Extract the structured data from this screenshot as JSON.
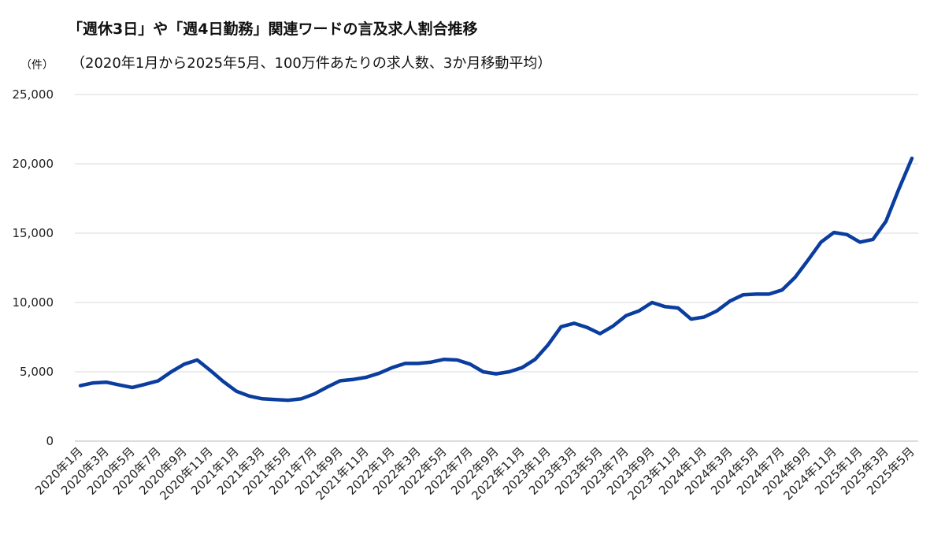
{
  "chart_data": {
    "type": "line",
    "title": "「週休3日」や「週4日勤務」関連ワードの言及求人割合推移",
    "subtitle": "（2020年1月から2025年5月、100万件あたりの求人数、3か月移動平均）",
    "ylabel": "（件）",
    "xlabel": "",
    "ylim": [
      0,
      25000
    ],
    "yticks": [
      0,
      5000,
      10000,
      15000,
      20000,
      25000
    ],
    "ytick_labels": [
      "0",
      "5,000",
      "10,000",
      "15,000",
      "20,000",
      "25,000"
    ],
    "grid": true,
    "line_color": "#0a3d9e",
    "x_tick_labels": [
      "2020年1月",
      "2020年3月",
      "2020年5月",
      "2020年7月",
      "2020年9月",
      "2020年11月",
      "2021年1月",
      "2021年3月",
      "2021年5月",
      "2021年7月",
      "2021年9月",
      "2021年11月",
      "2022年1月",
      "2022年3月",
      "2022年5月",
      "2022年7月",
      "2022年9月",
      "2022年11月",
      "2023年1月",
      "2023年3月",
      "2023年5月",
      "2023年7月",
      "2023年9月",
      "2023年11月",
      "2024年1月",
      "2024年3月",
      "2024年5月",
      "2024年7月",
      "2024年9月",
      "2024年11月",
      "2025年1月",
      "2025年3月",
      "2025年5月"
    ],
    "series": [
      {
        "values": [
          4000,
          4200,
          4250,
          4050,
          3870,
          4100,
          4350,
          5000,
          5550,
          5850,
          5100,
          4300,
          3600,
          3250,
          3050,
          3000,
          2950,
          3050,
          3400,
          3900,
          4350,
          4450,
          4600,
          4900,
          5300,
          5600,
          5600,
          5700,
          5900,
          5850,
          5550,
          5000,
          4850,
          5000,
          5300,
          5900,
          6950,
          8250,
          8500,
          8200,
          7750,
          8300,
          9050,
          9400,
          10000,
          9700,
          9600,
          8800,
          8950,
          9400,
          10100,
          10550,
          10600,
          10600,
          10900,
          11800,
          13050,
          14350,
          15050,
          14900,
          14350,
          14550,
          15850,
          18200,
          20400
        ]
      }
    ]
  }
}
